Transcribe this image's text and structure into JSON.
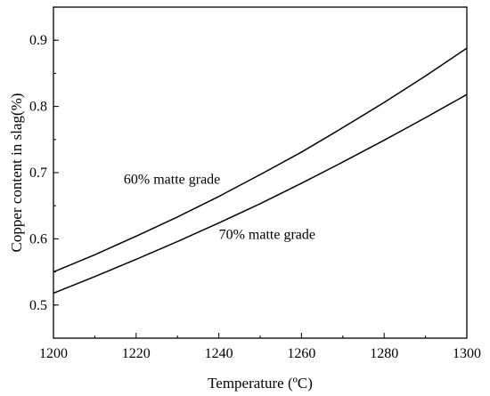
{
  "chart_data": {
    "type": "line",
    "title": "",
    "xlabel": "Temperature (ºC)",
    "ylabel": "Copper content in slag(%)",
    "xlim": [
      1200,
      1300
    ],
    "ylim": [
      0.45,
      0.95
    ],
    "xticks": [
      1200,
      1220,
      1240,
      1260,
      1280,
      1300
    ],
    "yticks": [
      0.5,
      0.6,
      0.7,
      0.8,
      0.9
    ],
    "grid": false,
    "legend": "none",
    "series": [
      {
        "x": [
          1200,
          1210,
          1220,
          1230,
          1240,
          1250,
          1260,
          1270,
          1280,
          1290,
          1300
        ],
        "y": [
          0.55,
          0.576,
          0.604,
          0.633,
          0.664,
          0.697,
          0.731,
          0.768,
          0.806,
          0.846,
          0.888
        ],
        "color": "#000000"
      },
      {
        "x": [
          1200,
          1210,
          1220,
          1230,
          1240,
          1250,
          1260,
          1270,
          1280,
          1290,
          1300
        ],
        "y": [
          0.518,
          0.543,
          0.569,
          0.596,
          0.624,
          0.653,
          0.684,
          0.716,
          0.749,
          0.783,
          0.818
        ],
        "color": "#000000"
      }
    ],
    "annotations": [
      {
        "text": "60% matte grade",
        "x": 1217,
        "y": 0.683
      },
      {
        "text": "70% matte grade",
        "x": 1240,
        "y": 0.6
      }
    ]
  }
}
